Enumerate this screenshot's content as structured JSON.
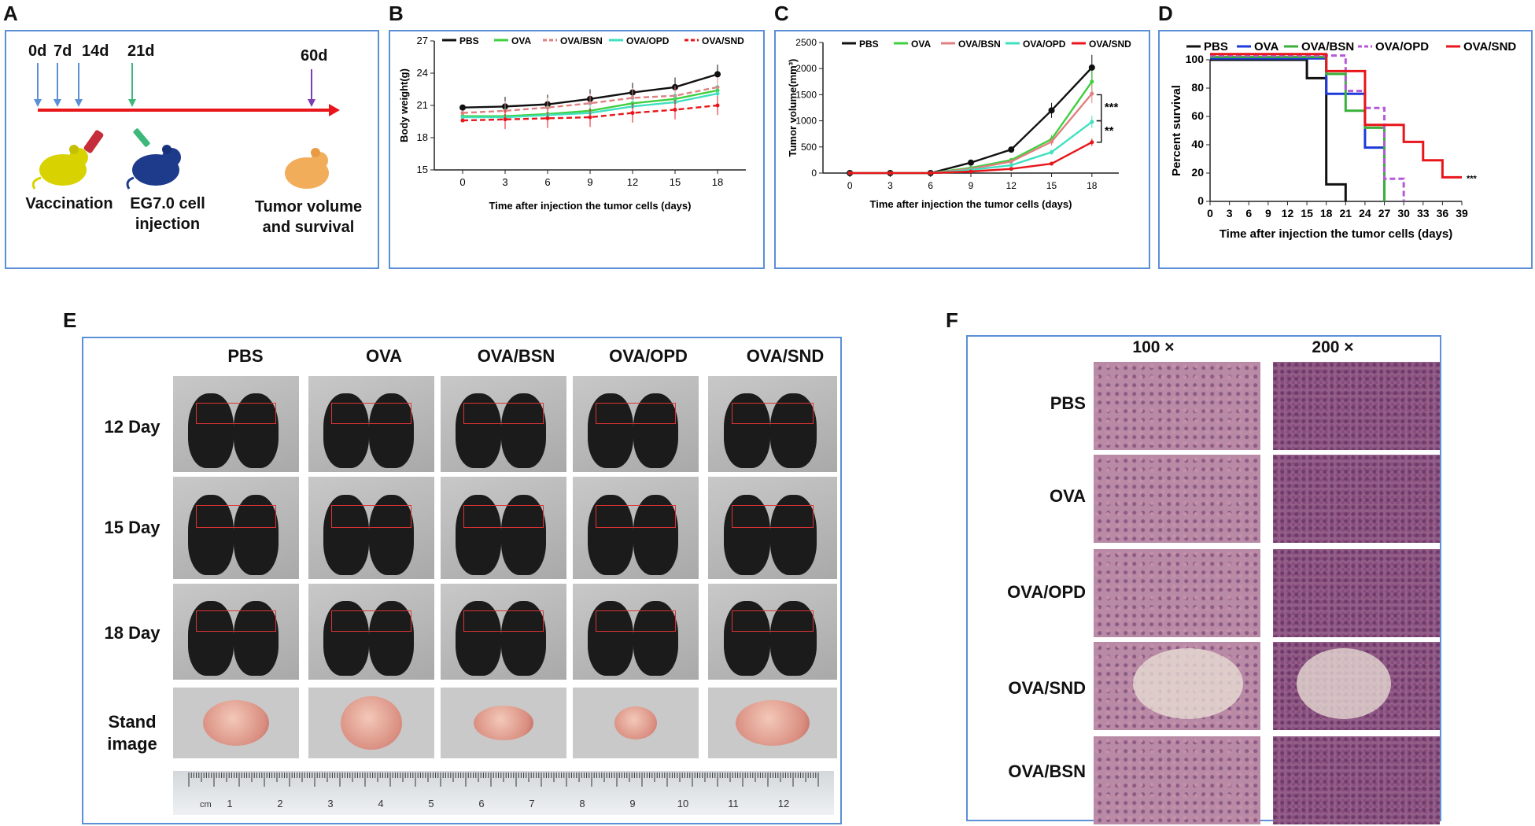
{
  "panels": {
    "A": {
      "letter": "A",
      "timepoints": [
        "0d",
        "7d",
        "14d",
        "21d",
        "60d"
      ],
      "captions": {
        "vaccination": "Vaccination",
        "injection_line1": "EG7.0 cell",
        "injection_line2": "injection",
        "outcome_line1": "Tumor volume",
        "outcome_line2": "and survival"
      },
      "colors": {
        "timeline": "#e8161b",
        "vaccine_arrow": "#5b8fd6",
        "injection_arrow": "#3db87a",
        "endpoint_arrow": "#7b3fb5"
      }
    },
    "E": {
      "letter": "E",
      "groups": [
        "PBS",
        "OVA",
        "OVA/BSN",
        "OVA/OPD",
        "OVA/SND"
      ],
      "rows": [
        "12 Day",
        "15 Day",
        "18 Day"
      ],
      "stand_image_line1": "Stand",
      "stand_image_line2": "image",
      "ruler": {
        "unit": "cm",
        "numbers": [
          "1",
          "2",
          "3",
          "4",
          "5",
          "6",
          "7",
          "8",
          "9",
          "10",
          "11",
          "12"
        ]
      }
    },
    "F": {
      "letter": "F",
      "magnifications": [
        "100 ×",
        "200 ×"
      ],
      "rows": [
        "PBS",
        "OVA",
        "OVA/OPD",
        "OVA/SND",
        "OVA/BSN"
      ]
    }
  },
  "chart_data": [
    {
      "panel": "B",
      "type": "line",
      "xlabel": "Time after injection the tumor cells (days)",
      "ylabel": "Body weight(g)",
      "x": [
        0,
        3,
        6,
        9,
        12,
        15,
        18
      ],
      "xticks": [
        "0",
        "3",
        "6",
        "9",
        "12",
        "15",
        "18"
      ],
      "yticks": [
        "15",
        "18",
        "21",
        "24",
        "27"
      ],
      "ylim": [
        15,
        27
      ],
      "legend_position": "top",
      "series": [
        {
          "name": "PBS",
          "color": "#111111",
          "style": "solid",
          "values": [
            20.8,
            20.9,
            21.1,
            21.6,
            22.2,
            22.7,
            23.9
          ]
        },
        {
          "name": "OVA",
          "color": "#3fcf3f",
          "style": "solid",
          "values": [
            20.0,
            20.0,
            20.2,
            20.5,
            21.2,
            21.6,
            22.4
          ]
        },
        {
          "name": "OVA/BSN",
          "color": "#e08080",
          "style": "dashed",
          "values": [
            20.3,
            20.5,
            20.8,
            21.2,
            21.7,
            21.9,
            22.7
          ]
        },
        {
          "name": "OVA/OPD",
          "color": "#40e0c0",
          "style": "solid",
          "values": [
            19.9,
            19.9,
            20.1,
            20.3,
            20.9,
            21.3,
            22.1
          ]
        },
        {
          "name": "OVA/SND",
          "color": "#e8161b",
          "style": "dashed",
          "values": [
            19.6,
            19.7,
            19.8,
            19.9,
            20.3,
            20.6,
            21.0
          ]
        }
      ]
    },
    {
      "panel": "C",
      "type": "line",
      "xlabel": "Time after injection the tumor cells (days)",
      "ylabel": "Tumor volume(mm³)",
      "x": [
        0,
        3,
        6,
        9,
        12,
        15,
        18
      ],
      "xticks": [
        "0",
        "3",
        "6",
        "9",
        "12",
        "15",
        "18"
      ],
      "yticks": [
        "0",
        "500",
        "1000",
        "1500",
        "2000",
        "2500"
      ],
      "ylim": [
        0,
        2500
      ],
      "legend_position": "top",
      "annotations": [
        "***",
        "**"
      ],
      "series": [
        {
          "name": "PBS",
          "color": "#111111",
          "values": [
            0,
            0,
            0,
            200,
            450,
            1200,
            2020
          ]
        },
        {
          "name": "OVA",
          "color": "#3fcf3f",
          "values": [
            0,
            0,
            0,
            100,
            250,
            650,
            1750
          ]
        },
        {
          "name": "OVA/BSN",
          "color": "#e08080",
          "values": [
            0,
            0,
            0,
            80,
            220,
            600,
            1520
          ]
        },
        {
          "name": "OVA/OPD",
          "color": "#40e0c0",
          "values": [
            0,
            0,
            0,
            60,
            150,
            400,
            980
          ]
        },
        {
          "name": "OVA/SND",
          "color": "#e8161b",
          "values": [
            0,
            0,
            0,
            30,
            80,
            180,
            590
          ]
        }
      ]
    },
    {
      "panel": "D",
      "type": "line",
      "xlabel": "Time after injection the tumor cells (days)",
      "ylabel": "Percent survival",
      "xticks": [
        "0",
        "3",
        "6",
        "9",
        "12",
        "15",
        "18",
        "21",
        "24",
        "27",
        "30",
        "33",
        "36",
        "39"
      ],
      "yticks": [
        "0",
        "20",
        "40",
        "60",
        "80",
        "100"
      ],
      "xlim": [
        0,
        39
      ],
      "ylim": [
        0,
        100
      ],
      "legend_position": "top",
      "annotations": [
        "***"
      ],
      "series": [
        {
          "name": "PBS",
          "color": "#111111",
          "style": "solid",
          "x": [
            0,
            15,
            18,
            21
          ],
          "values": [
            100,
            87,
            12,
            0
          ]
        },
        {
          "name": "OVA",
          "color": "#1e3ad8",
          "style": "solid",
          "x": [
            0,
            18,
            24,
            27
          ],
          "values": [
            101,
            76,
            38,
            0
          ]
        },
        {
          "name": "OVA/BSN",
          "color": "#3ab03a",
          "style": "solid",
          "x": [
            0,
            18,
            21,
            24,
            27
          ],
          "values": [
            102,
            90,
            64,
            52,
            0
          ]
        },
        {
          "name": "OVA/OPD",
          "color": "#b45ad8",
          "style": "dashed",
          "x": [
            0,
            21,
            24,
            27,
            30
          ],
          "values": [
            103,
            78,
            66,
            16,
            0
          ]
        },
        {
          "name": "OVA/SND",
          "color": "#e8161b",
          "style": "solid",
          "x": [
            0,
            18,
            24,
            30,
            33,
            36,
            39
          ],
          "values": [
            104,
            92,
            54,
            42,
            29,
            17,
            17
          ]
        }
      ]
    }
  ]
}
